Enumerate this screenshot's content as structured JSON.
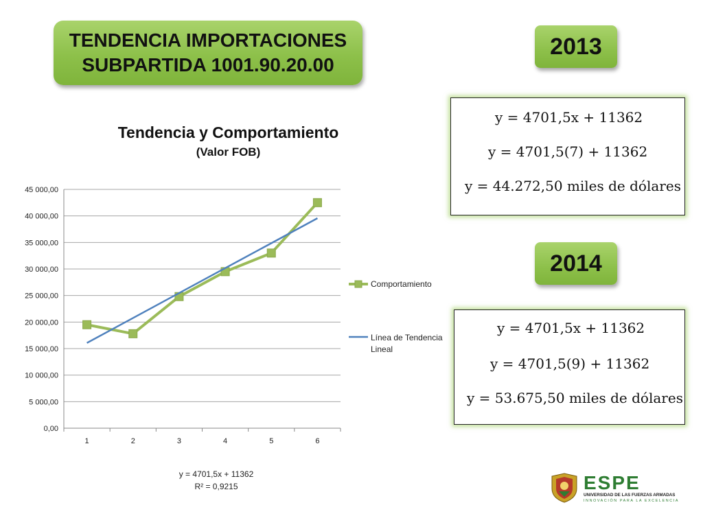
{
  "header": {
    "title_line1": "TENDENCIA IMPORTACIONES",
    "title_line2": "SUBPARTIDA 1001.90.20.00"
  },
  "year2013": {
    "label": "2013",
    "eq1": "y = 4701,5x +  11362",
    "eq2": "y = 4701,5(7) +  11362",
    "eq3": "y = 44.272,50 miles de dólares"
  },
  "year2014": {
    "label": "2014",
    "eq1": "y = 4701,5x +  11362",
    "eq2": "y = 4701,5(9) +  11362",
    "eq3": "y = 53.675,50 miles de dólares"
  },
  "chart_data": {
    "type": "line",
    "title": "Tendencia y Comportamiento",
    "subtitle": "(Valor FOB)",
    "categories": [
      "1",
      "2",
      "3",
      "4",
      "5",
      "6"
    ],
    "series": [
      {
        "name": "Comportamiento",
        "values": [
          19500,
          17800,
          24800,
          29500,
          33000,
          42500
        ],
        "color": "#9bbb59",
        "marker": "square"
      },
      {
        "name": "Línea de Tendencia Lineal",
        "values": [
          16063.5,
          20765,
          25466.5,
          30168,
          34869.5,
          39571
        ],
        "color": "#4f81bd"
      }
    ],
    "ylim": [
      0,
      45000
    ],
    "yticks": [
      "0,00",
      "5 000,00",
      "10 000,00",
      "15 000,00",
      "20 000,00",
      "25 000,00",
      "30 000,00",
      "35 000,00",
      "40 000,00",
      "45 000,00"
    ],
    "grid": true,
    "legend": "right",
    "trend_equation": "y = 4701,5x + 11362",
    "r_squared": "R² = 0,9215"
  },
  "logo": {
    "text": "ESPE",
    "subtitle1": "UNIVERSIDAD DE LAS FUERZAS ARMADAS",
    "subtitle2": "INNOVACIÓN PARA LA EXCELENCIA",
    "color": "#2e7d32"
  }
}
